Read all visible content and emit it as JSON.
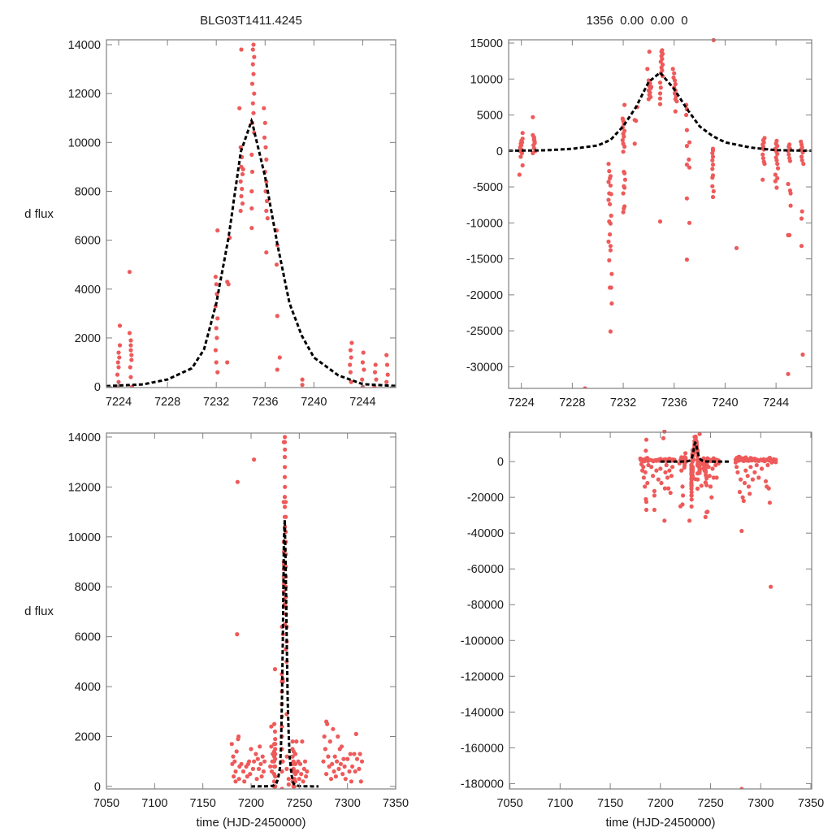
{
  "chart_data": {
    "type": "scatter",
    "title_left": "BLG03T1411.4245",
    "title_right": "1356  0.00  0.00  0",
    "ylabel": "d flux",
    "xlabel": "time (HJD-2450000)",
    "colors": {
      "points": "#ee5a5a",
      "model": "#000000",
      "axes": "#808080"
    },
    "panels": [
      {
        "name": "top-left-zoom",
        "xlim": [
          7223.0,
          7246.7
        ],
        "ylim": [
          -30,
          14200
        ],
        "xticks": [
          7224,
          7228,
          7232,
          7236,
          7240,
          7244
        ],
        "yticks": [
          0,
          2000,
          4000,
          6000,
          8000,
          10000,
          12000,
          14000
        ],
        "show_ylabel": true,
        "show_xlabel": false
      },
      {
        "name": "top-right-zoom",
        "xlim": [
          7223.0,
          7246.8
        ],
        "ylim": [
          -33000,
          15450
        ],
        "xticks": [
          7224,
          7228,
          7232,
          7236,
          7240,
          7244
        ],
        "yticks": [
          15000,
          10000,
          5000,
          0,
          -5000,
          -10000,
          -15000,
          -20000,
          -25000,
          -30000
        ],
        "show_ylabel": false,
        "show_xlabel": false
      },
      {
        "name": "bottom-left-full",
        "xlim": [
          7050,
          7350
        ],
        "ylim": [
          -100,
          14160
        ],
        "xticks": [
          7050,
          7100,
          7150,
          7200,
          7250,
          7300,
          7350
        ],
        "yticks": [
          0,
          2000,
          4000,
          6000,
          8000,
          10000,
          12000,
          14000
        ],
        "show_ylabel": true,
        "show_xlabel": true
      },
      {
        "name": "bottom-right-full",
        "xlim": [
          7049.5,
          7350.8
        ],
        "ylim": [
          -183000,
          16400
        ],
        "xticks": [
          7050,
          7100,
          7150,
          7200,
          7250,
          7300,
          7350
        ],
        "yticks": [
          0,
          -20000,
          -40000,
          -60000,
          -80000,
          -100000,
          -120000,
          -140000,
          -160000,
          -180000
        ],
        "show_ylabel": false,
        "show_xlabel": true
      }
    ],
    "model": {
      "name": "fit",
      "x": [
        7200,
        7215,
        7220,
        7223,
        7226,
        7228,
        7230,
        7231,
        7232,
        7233,
        7234,
        7234.9,
        7236,
        7237,
        7238,
        7239,
        7240,
        7242,
        7244,
        7246.5,
        7250,
        7255,
        7270
      ],
      "y": [
        0,
        5,
        15,
        30,
        100,
        300,
        760,
        1530,
        3420,
        6090,
        9600,
        10900,
        8600,
        5850,
        3420,
        2100,
        1200,
        470,
        110,
        40,
        15,
        5,
        0
      ]
    },
    "observations": [
      [
        7223.9,
        500
      ],
      [
        7223.95,
        1000
      ],
      [
        7224,
        1400
      ],
      [
        7224.05,
        -300
      ],
      [
        7224.1,
        2500
      ],
      [
        7224.1,
        1700
      ],
      [
        7223.95,
        -800
      ],
      [
        7224,
        200
      ],
      [
        7223.85,
        -3300
      ],
      [
        7224.1,
        -2000
      ],
      [
        7224,
        800
      ],
      [
        7224.05,
        1200
      ],
      [
        7223.9,
        0
      ],
      [
        7224.9,
        4700
      ],
      [
        7224.9,
        2200
      ],
      [
        7225,
        1900
      ],
      [
        7225,
        1500
      ],
      [
        7225.05,
        1100
      ],
      [
        7224.95,
        800
      ],
      [
        7225,
        400
      ],
      [
        7225.1,
        0
      ],
      [
        7224.9,
        -300
      ],
      [
        7225,
        1700
      ],
      [
        7225.05,
        1300
      ],
      [
        7229,
        -33000
      ],
      [
        7230.85,
        -1800
      ],
      [
        7230.9,
        -2800
      ],
      [
        7231,
        -3500
      ],
      [
        7230.95,
        -3800
      ],
      [
        7230.85,
        -4300
      ],
      [
        7231,
        -4800
      ],
      [
        7230.9,
        -5900
      ],
      [
        7231.05,
        -6000
      ],
      [
        7230.85,
        -6800
      ],
      [
        7230.95,
        -7400
      ],
      [
        7231.05,
        -9000
      ],
      [
        7230.9,
        -9800
      ],
      [
        7231,
        -10100
      ],
      [
        7230.95,
        -11600
      ],
      [
        7230.85,
        -12600
      ],
      [
        7231,
        -13200
      ],
      [
        7231,
        -13800
      ],
      [
        7230.9,
        -15200
      ],
      [
        7231.1,
        -17100
      ],
      [
        7230.95,
        -19000
      ],
      [
        7231.05,
        -19000
      ],
      [
        7231.1,
        -21200
      ],
      [
        7231,
        -25100
      ],
      [
        7232.1,
        6400
      ],
      [
        7231.95,
        4500
      ],
      [
        7232,
        4200
      ],
      [
        7232.05,
        3800
      ],
      [
        7231.95,
        3300
      ],
      [
        7232.1,
        2800
      ],
      [
        7232,
        2400
      ],
      [
        7232.05,
        2000
      ],
      [
        7231.95,
        1500
      ],
      [
        7232,
        1000
      ],
      [
        7232.1,
        600
      ],
      [
        7232,
        -100
      ],
      [
        7232.05,
        -2900
      ],
      [
        7232.1,
        -3100
      ],
      [
        7232.15,
        -4000
      ],
      [
        7232.05,
        -4900
      ],
      [
        7232.1,
        -5100
      ],
      [
        7232,
        -5900
      ],
      [
        7232.1,
        -7700
      ],
      [
        7232.05,
        -8000
      ],
      [
        7232,
        -8500
      ],
      [
        7232.9,
        4300
      ],
      [
        7233,
        4200
      ],
      [
        7232.9,
        1000
      ],
      [
        7233.1,
        6100
      ],
      [
        7234.05,
        13800
      ],
      [
        7233.9,
        11400
      ],
      [
        7234,
        9800
      ],
      [
        7234.1,
        9400
      ],
      [
        7234.05,
        9000
      ],
      [
        7234.15,
        8700
      ],
      [
        7234,
        8400
      ],
      [
        7234.1,
        8100
      ],
      [
        7234.05,
        7800
      ],
      [
        7234.15,
        7500
      ],
      [
        7234,
        7200
      ],
      [
        7234.2,
        8900
      ],
      [
        7235.05,
        14000
      ],
      [
        7235,
        13800
      ],
      [
        7235.1,
        13500
      ],
      [
        7235,
        13200
      ],
      [
        7235.05,
        12800
      ],
      [
        7234.95,
        12400
      ],
      [
        7235.1,
        12000
      ],
      [
        7235,
        11600
      ],
      [
        7235.05,
        11200
      ],
      [
        7234.95,
        10800
      ],
      [
        7235.1,
        10400
      ],
      [
        7234.9,
        9500
      ],
      [
        7234.95,
        8800
      ],
      [
        7234.9,
        8000
      ],
      [
        7234.9,
        7300
      ],
      [
        7234.9,
        6500
      ],
      [
        7234.9,
        -9800
      ],
      [
        7235.9,
        11400
      ],
      [
        7236,
        10800
      ],
      [
        7235.95,
        10200
      ],
      [
        7236.05,
        9800
      ],
      [
        7236.1,
        9300
      ],
      [
        7236,
        8800
      ],
      [
        7236.1,
        8400
      ],
      [
        7236.05,
        8000
      ],
      [
        7236.15,
        7600
      ],
      [
        7236.1,
        7200
      ],
      [
        7236.2,
        6900
      ],
      [
        7236.1,
        5500
      ],
      [
        7236.95,
        6400
      ],
      [
        7237,
        5800
      ],
      [
        7236.95,
        5000
      ],
      [
        7237,
        2900
      ],
      [
        7237.2,
        1200
      ],
      [
        7237,
        700
      ],
      [
        7237.15,
        -1200
      ],
      [
        7237,
        -1900
      ],
      [
        7237.2,
        -2300
      ],
      [
        7237,
        -6600
      ],
      [
        7237.2,
        -10000
      ],
      [
        7237,
        -15100
      ],
      [
        7239.1,
        15400
      ],
      [
        7239.05,
        300
      ],
      [
        7239,
        -300
      ],
      [
        7239.05,
        -800
      ],
      [
        7239,
        -1300
      ],
      [
        7239.05,
        -1900
      ],
      [
        7239,
        -2500
      ],
      [
        7239.05,
        -3400
      ],
      [
        7239,
        -3700
      ],
      [
        7239,
        -4900
      ],
      [
        7239.1,
        -5600
      ],
      [
        7239.05,
        -6400
      ],
      [
        7239.05,
        80
      ],
      [
        7240.9,
        -13500
      ],
      [
        7243.1,
        1800
      ],
      [
        7243,
        1500
      ],
      [
        7243.05,
        1200
      ],
      [
        7242.95,
        900
      ],
      [
        7243,
        600
      ],
      [
        7243.05,
        200
      ],
      [
        7242.95,
        -500
      ],
      [
        7243,
        -1000
      ],
      [
        7243.05,
        -1500
      ],
      [
        7243.1,
        -1800
      ],
      [
        7242.95,
        -4000
      ],
      [
        7244.05,
        1400
      ],
      [
        7244,
        1000
      ],
      [
        7244.1,
        700
      ],
      [
        7243.95,
        300
      ],
      [
        7244,
        0
      ],
      [
        7244.1,
        -400
      ],
      [
        7244,
        -900
      ],
      [
        7244.05,
        -1300
      ],
      [
        7244.1,
        -1800
      ],
      [
        7244.15,
        -2400
      ],
      [
        7243.95,
        -3300
      ],
      [
        7244.1,
        -3800
      ],
      [
        7243.95,
        -4200
      ],
      [
        7244.05,
        -5100
      ],
      [
        7245.05,
        900
      ],
      [
        7245,
        600
      ],
      [
        7245.1,
        300
      ],
      [
        7244.95,
        0
      ],
      [
        7245,
        -500
      ],
      [
        7245.05,
        -1000
      ],
      [
        7245.1,
        -1400
      ],
      [
        7244.95,
        -4600
      ],
      [
        7245.1,
        -5500
      ],
      [
        7245.15,
        -5900
      ],
      [
        7245.15,
        -7600
      ],
      [
        7244.95,
        -11700
      ],
      [
        7245.05,
        -11700
      ],
      [
        7244.95,
        -31000
      ],
      [
        7245.95,
        1300
      ],
      [
        7246,
        900
      ],
      [
        7246.05,
        500
      ],
      [
        7245.95,
        200
      ],
      [
        7246.1,
        -200
      ],
      [
        7246,
        -800
      ],
      [
        7246.05,
        -1300
      ],
      [
        7246.15,
        -1800
      ],
      [
        7246.05,
        -8400
      ],
      [
        7246,
        -9400
      ],
      [
        7246,
        -13200
      ],
      [
        7246.1,
        -28300
      ],
      [
        7180,
        1700
      ],
      [
        7180.5,
        900
      ],
      [
        7181,
        -1500
      ],
      [
        7181.5,
        1200
      ],
      [
        7182,
        400
      ],
      [
        7182,
        -5000
      ],
      [
        7183,
        1000
      ],
      [
        7183,
        -3000
      ],
      [
        7183.5,
        -9000
      ],
      [
        7184,
        600
      ],
      [
        7184,
        200
      ],
      [
        7184.5,
        -14000
      ],
      [
        7185,
        -6000
      ],
      [
        7185,
        1400
      ],
      [
        7185.5,
        -21000
      ],
      [
        7185.5,
        6100
      ],
      [
        7186,
        12200
      ],
      [
        7186,
        -22500
      ],
      [
        7186,
        -27000
      ],
      [
        7186.5,
        1900
      ],
      [
        7187,
        2000
      ],
      [
        7187,
        -12000
      ],
      [
        7187.5,
        300
      ],
      [
        7188,
        800
      ],
      [
        7188,
        -2000
      ],
      [
        7190,
        900
      ],
      [
        7191,
        -3000
      ],
      [
        7192,
        600
      ],
      [
        7192.5,
        -8000
      ],
      [
        7193,
        200
      ],
      [
        7194,
        -16500
      ],
      [
        7194,
        -19000
      ],
      [
        7194,
        -27000
      ],
      [
        7195,
        800
      ],
      [
        7196,
        -5000
      ],
      [
        7196,
        400
      ],
      [
        7197,
        900
      ],
      [
        7198,
        -10000
      ],
      [
        7198,
        1000
      ],
      [
        7199,
        500
      ],
      [
        7200,
        -4000
      ],
      [
        7200,
        1500
      ],
      [
        7201,
        -12000
      ],
      [
        7202,
        700
      ],
      [
        7203,
        13100
      ],
      [
        7203,
        1000
      ],
      [
        7204,
        16800
      ],
      [
        7204,
        -33000
      ],
      [
        7204.5,
        -15000
      ],
      [
        7205,
        1300
      ],
      [
        7205,
        -6000
      ],
      [
        7206,
        300
      ],
      [
        7206,
        -2000
      ],
      [
        7207,
        1100
      ],
      [
        7207,
        -9000
      ],
      [
        7208,
        700
      ],
      [
        7208,
        -15000
      ],
      [
        7209,
        1600
      ],
      [
        7209,
        -5000
      ],
      [
        7210,
        900
      ],
      [
        7210,
        -17500
      ],
      [
        7211,
        400
      ],
      [
        7211,
        -8000
      ],
      [
        7212,
        1200
      ],
      [
        7212,
        -3000
      ],
      [
        7213,
        600
      ],
      [
        7214,
        1000
      ],
      [
        7219,
        -1000
      ],
      [
        7220,
        800
      ],
      [
        7220,
        -25000
      ],
      [
        7221,
        -5000
      ],
      [
        7221,
        2400
      ],
      [
        7221,
        1600
      ],
      [
        7221.5,
        600
      ],
      [
        7222,
        -14000
      ],
      [
        7222,
        -24000
      ],
      [
        7222,
        1000
      ],
      [
        7222.5,
        1300
      ],
      [
        7222.5,
        -19000
      ],
      [
        7247,
        1800
      ],
      [
        7247,
        -28000
      ],
      [
        7248,
        -3000
      ],
      [
        7248,
        600
      ],
      [
        7249,
        1000
      ],
      [
        7249,
        -8000
      ],
      [
        7250,
        300
      ],
      [
        7250,
        -14000
      ],
      [
        7251,
        900
      ],
      [
        7251,
        -20000
      ],
      [
        7252,
        500
      ],
      [
        7252,
        -4000
      ],
      [
        7253,
        1800
      ],
      [
        7253,
        -9000
      ],
      [
        7254,
        200
      ],
      [
        7255,
        700
      ],
      [
        7255,
        -2000
      ],
      [
        7256,
        1000
      ],
      [
        7256,
        -9000
      ],
      [
        7257,
        400
      ],
      [
        7258,
        -1000
      ],
      [
        7258,
        600
      ],
      [
        7275,
        1000
      ],
      [
        7275,
        -500
      ],
      [
        7276,
        2000
      ],
      [
        7276,
        -3000
      ],
      [
        7277,
        1500
      ],
      [
        7277,
        -6000
      ],
      [
        7278,
        2600
      ],
      [
        7278,
        500
      ],
      [
        7279,
        2500
      ],
      [
        7279,
        -17000
      ],
      [
        7280,
        1200
      ],
      [
        7280,
        -10000
      ],
      [
        7281,
        -38800
      ],
      [
        7281,
        -183000
      ],
      [
        7281,
        800
      ],
      [
        7282,
        -20000
      ],
      [
        7282,
        1800
      ],
      [
        7283,
        -22000
      ],
      [
        7283,
        300
      ],
      [
        7284,
        -12000
      ],
      [
        7284,
        900
      ],
      [
        7285,
        2300
      ],
      [
        7285,
        -5000
      ],
      [
        7286,
        600
      ],
      [
        7287,
        1200
      ],
      [
        7287,
        -8000
      ],
      [
        7288,
        -14000
      ],
      [
        7288,
        400
      ],
      [
        7289,
        -18000
      ],
      [
        7289,
        1000
      ],
      [
        7290,
        2000
      ],
      [
        7290,
        -3000
      ],
      [
        7291,
        700
      ],
      [
        7292,
        1500
      ],
      [
        7292,
        -10000
      ],
      [
        7293,
        900
      ],
      [
        7294,
        1600
      ],
      [
        7294,
        -6000
      ],
      [
        7295,
        500
      ],
      [
        7296,
        1100
      ],
      [
        7296,
        -2000
      ],
      [
        7297,
        800
      ],
      [
        7298,
        -9000
      ],
      [
        7298,
        300
      ],
      [
        7300,
        1100
      ],
      [
        7301,
        -4000
      ],
      [
        7302,
        600
      ],
      [
        7303,
        1300
      ],
      [
        7304,
        200
      ],
      [
        7305,
        -11000
      ],
      [
        7305,
        800
      ],
      [
        7306,
        -14000
      ],
      [
        7307,
        1300
      ],
      [
        7307,
        -2000
      ],
      [
        7308,
        -15000
      ],
      [
        7308,
        600
      ],
      [
        7309,
        2100
      ],
      [
        7309,
        -23000
      ],
      [
        7310,
        -70000
      ],
      [
        7310,
        1100
      ],
      [
        7311,
        -500
      ],
      [
        7312,
        700
      ],
      [
        7313,
        1300
      ],
      [
        7314,
        200
      ],
      [
        7315,
        1000
      ],
      [
        7315,
        -300
      ]
    ]
  }
}
